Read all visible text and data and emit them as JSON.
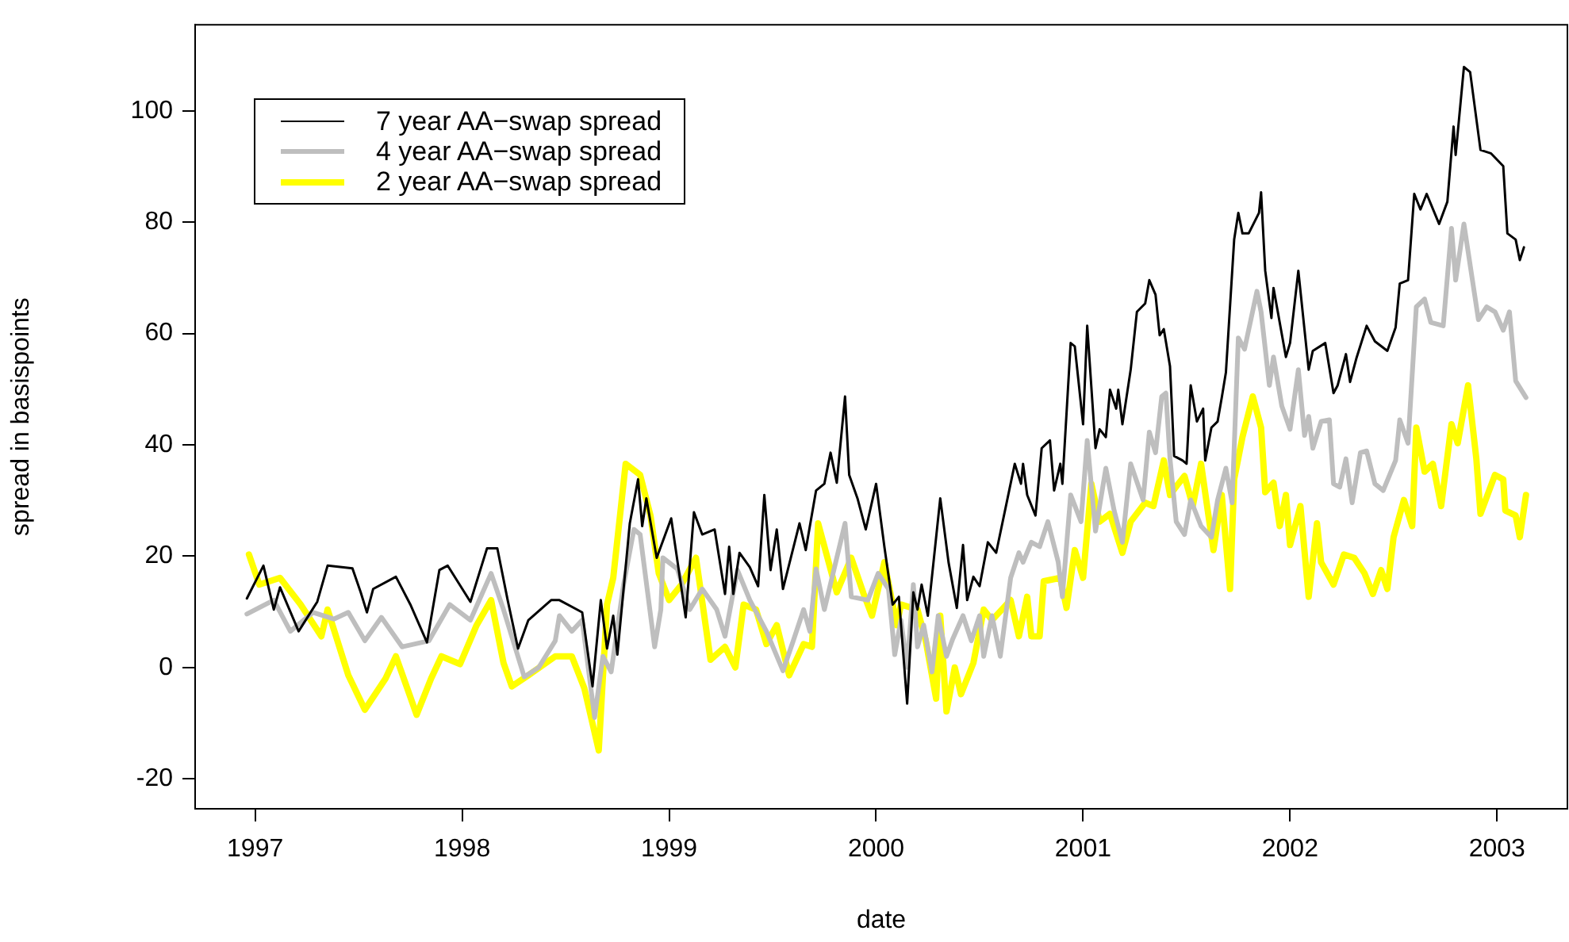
{
  "chart_data": {
    "type": "line",
    "xlabel": "date",
    "ylabel": "spread in basispoints",
    "xlim": [
      1996.71,
      2003.34
    ],
    "ylim": [
      -25.4,
      115.5
    ],
    "xticks": [
      1997,
      1998,
      1999,
      2000,
      2001,
      2002,
      2003
    ],
    "yticks": [
      -20,
      0,
      20,
      40,
      60,
      80,
      100
    ],
    "legend": "top left",
    "marker": "none",
    "line_style": "solid",
    "series": [
      {
        "name": "7 year AA−swap spread",
        "color": "#000000",
        "x": [
          1996.96,
          1997.04,
          1997.09,
          1997.12,
          1997.21,
          1997.3,
          1997.35,
          1997.47,
          1997.51,
          1997.54,
          1997.57,
          1997.68,
          1997.75,
          1997.83,
          1997.89,
          1997.93,
          1998.04,
          1998.12,
          1998.17,
          1998.22,
          1998.27,
          1998.32,
          1998.43,
          1998.47,
          1998.58,
          1998.63,
          1998.67,
          1998.7,
          1998.73,
          1998.75,
          1998.81,
          1998.85,
          1998.87,
          1998.89,
          1998.94,
          1999.01,
          1999.08,
          1999.12,
          1999.16,
          1999.22,
          1999.27,
          1999.29,
          1999.31,
          1999.34,
          1999.39,
          1999.43,
          1999.46,
          1999.49,
          1999.52,
          1999.55,
          1999.63,
          1999.66,
          1999.71,
          1999.75,
          1999.78,
          1999.81,
          1999.85,
          1999.87,
          1999.91,
          1999.95,
          2000.0,
          2000.04,
          2000.08,
          2000.11,
          2000.15,
          2000.18,
          2000.2,
          2000.22,
          2000.25,
          2000.31,
          2000.35,
          2000.39,
          2000.42,
          2000.44,
          2000.47,
          2000.5,
          2000.54,
          2000.58,
          2000.67,
          2000.7,
          2000.71,
          2000.73,
          2000.77,
          2000.8,
          2000.84,
          2000.86,
          2000.89,
          2000.9,
          2000.94,
          2000.96,
          2001.0,
          2001.02,
          2001.06,
          2001.08,
          2001.11,
          2001.13,
          2001.16,
          2001.17,
          2001.19,
          2001.23,
          2001.26,
          2001.3,
          2001.32,
          2001.35,
          2001.37,
          2001.39,
          2001.42,
          2001.44,
          2001.48,
          2001.5,
          2001.52,
          2001.55,
          2001.58,
          2001.59,
          2001.62,
          2001.65,
          2001.67,
          2001.69,
          2001.73,
          2001.75,
          2001.77,
          2001.8,
          2001.85,
          2001.86,
          2001.88,
          2001.91,
          2001.92,
          2001.98,
          2002.0,
          2002.04,
          2002.09,
          2002.11,
          2002.17,
          2002.21,
          2002.23,
          2002.27,
          2002.29,
          2002.32,
          2002.37,
          2002.41,
          2002.47,
          2002.51,
          2002.53,
          2002.57,
          2002.6,
          2002.63,
          2002.66,
          2002.72,
          2002.76,
          2002.79,
          2002.8,
          2002.84,
          2002.87,
          2002.92,
          2002.97,
          2003.03,
          2003.05,
          2003.09,
          2003.11,
          2003.13
        ],
        "values": [
          12.4,
          18.3,
          10.4,
          14.4,
          6.5,
          11.8,
          18.3,
          17.8,
          13.5,
          9.9,
          14.1,
          16.3,
          11.3,
          4.5,
          17.5,
          18.3,
          11.8,
          21.4,
          21.4,
          12.1,
          3.4,
          8.5,
          12.1,
          12.1,
          9.9,
          -3.4,
          12.1,
          3.4,
          9.3,
          2.3,
          25.9,
          33.8,
          25.4,
          30.4,
          19.7,
          26.8,
          9.0,
          27.9,
          23.9,
          24.8,
          13.2,
          21.7,
          13.2,
          20.6,
          18.0,
          14.6,
          31.0,
          17.5,
          24.8,
          14.1,
          25.9,
          21.1,
          31.8,
          33.0,
          38.6,
          33.2,
          48.7,
          34.6,
          30.4,
          24.8,
          33.0,
          21.7,
          11.3,
          12.7,
          -6.5,
          13.5,
          10.4,
          14.9,
          9.3,
          30.4,
          18.9,
          10.7,
          22.0,
          12.1,
          16.3,
          14.6,
          22.5,
          20.6,
          36.6,
          33.0,
          36.6,
          31.0,
          27.3,
          39.4,
          40.8,
          31.8,
          36.6,
          33.0,
          58.3,
          57.7,
          43.7,
          61.4,
          39.4,
          42.8,
          41.4,
          49.9,
          46.5,
          49.9,
          43.7,
          53.5,
          63.9,
          65.4,
          69.6,
          67.0,
          59.7,
          60.8,
          54.1,
          38.0,
          37.2,
          36.6,
          50.7,
          44.2,
          46.5,
          37.2,
          43.1,
          44.2,
          48.5,
          53.0,
          76.9,
          81.7,
          78.0,
          78.0,
          81.7,
          85.4,
          71.3,
          62.8,
          68.2,
          55.8,
          58.3,
          71.3,
          53.5,
          56.9,
          58.3,
          49.3,
          50.7,
          56.3,
          51.3,
          55.5,
          61.4,
          58.6,
          56.9,
          61.1,
          69.0,
          69.6,
          85.1,
          82.3,
          85.1,
          79.7,
          83.7,
          97.2,
          92.1,
          107.9,
          107.0,
          93.0,
          92.4,
          90.1,
          78.0,
          76.9,
          73.2,
          75.5
        ]
      },
      {
        "name": "4 year AA−swap spread",
        "color": "#bebebe",
        "x": [
          1996.96,
          1997.09,
          1997.17,
          1997.28,
          1997.38,
          1997.45,
          1997.53,
          1997.61,
          1997.71,
          1997.84,
          1997.94,
          1998.04,
          1998.14,
          1998.2,
          1998.3,
          1998.37,
          1998.45,
          1998.47,
          1998.53,
          1998.58,
          1998.64,
          1998.68,
          1998.72,
          1998.78,
          1998.83,
          1998.86,
          1998.93,
          1998.96,
          1998.97,
          1999.04,
          1999.1,
          1999.16,
          1999.23,
          1999.27,
          1999.33,
          1999.39,
          1999.47,
          1999.55,
          1999.6,
          1999.65,
          1999.68,
          1999.71,
          1999.75,
          1999.85,
          1999.88,
          1999.96,
          2000.01,
          2000.06,
          2000.09,
          2000.12,
          2000.15,
          2000.18,
          2000.2,
          2000.23,
          2000.27,
          2000.3,
          2000.34,
          2000.37,
          2000.42,
          2000.46,
          2000.5,
          2000.52,
          2000.56,
          2000.6,
          2000.65,
          2000.69,
          2000.71,
          2000.75,
          2000.79,
          2000.83,
          2000.88,
          2000.9,
          2000.94,
          2000.99,
          2001.02,
          2001.06,
          2001.11,
          2001.15,
          2001.19,
          2001.23,
          2001.29,
          2001.32,
          2001.35,
          2001.38,
          2001.4,
          2001.42,
          2001.45,
          2001.49,
          2001.52,
          2001.57,
          2001.62,
          2001.65,
          2001.69,
          2001.72,
          2001.75,
          2001.78,
          2001.84,
          2001.86,
          2001.9,
          2001.92,
          2001.96,
          2002.0,
          2002.04,
          2002.07,
          2002.09,
          2002.11,
          2002.15,
          2002.19,
          2002.21,
          2002.24,
          2002.27,
          2002.3,
          2002.34,
          2002.37,
          2002.41,
          2002.45,
          2002.51,
          2002.53,
          2002.57,
          2002.61,
          2002.65,
          2002.68,
          2002.74,
          2002.78,
          2002.8,
          2002.84,
          2002.91,
          2002.95,
          2002.99,
          2003.03,
          2003.06,
          2003.09,
          2003.14
        ],
        "values": [
          9.6,
          12.1,
          6.5,
          9.9,
          8.7,
          9.9,
          4.8,
          9.0,
          3.7,
          4.8,
          11.3,
          8.5,
          16.9,
          10.4,
          -1.7,
          0,
          4.8,
          9.3,
          6.5,
          8.5,
          -9.0,
          2.0,
          -0.8,
          14.9,
          24.8,
          23.9,
          3.7,
          10.4,
          19.7,
          17.7,
          10.4,
          14.1,
          10.4,
          5.6,
          17.5,
          12.1,
          6.5,
          -0.6,
          4.8,
          10.4,
          6.5,
          17.7,
          10.4,
          25.9,
          12.7,
          12.1,
          16.9,
          14.1,
          2.3,
          8.5,
          0,
          14.9,
          3.7,
          7.6,
          -0.8,
          9.3,
          2.0,
          5.1,
          9.3,
          4.8,
          9.3,
          2.0,
          9.3,
          2.0,
          16.1,
          20.6,
          18.9,
          22.5,
          21.7,
          26.2,
          18.9,
          12.7,
          31.0,
          26.2,
          40.8,
          24.5,
          35.8,
          28.2,
          22.5,
          36.6,
          30.1,
          42.3,
          38.6,
          48.7,
          49.3,
          37.5,
          26.2,
          23.9,
          30.1,
          25.4,
          23.4,
          30.1,
          35.8,
          29.6,
          59.2,
          57.2,
          67.6,
          63.9,
          50.7,
          55.8,
          47.0,
          42.8,
          53.5,
          41.7,
          45.1,
          39.4,
          44.2,
          44.5,
          33.0,
          32.4,
          37.5,
          29.6,
          38.6,
          38.9,
          33.0,
          31.8,
          37.2,
          44.5,
          40.3,
          64.8,
          66.2,
          62.0,
          61.4,
          78.9,
          69.6,
          79.7,
          62.5,
          64.8,
          63.9,
          60.6,
          63.9,
          51.5,
          48.5
        ]
      },
      {
        "name": "2 year AA−swap spread",
        "color": "#ffff00",
        "x": [
          1996.97,
          1997.02,
          1997.12,
          1997.22,
          1997.32,
          1997.35,
          1997.45,
          1997.53,
          1997.63,
          1997.68,
          1997.78,
          1997.85,
          1997.9,
          1997.99,
          1998.07,
          1998.14,
          1998.2,
          1998.24,
          1998.32,
          1998.45,
          1998.53,
          1998.59,
          1998.66,
          1998.7,
          1998.73,
          1998.79,
          1998.86,
          1998.91,
          1998.95,
          1999.0,
          1999.06,
          1999.13,
          1999.2,
          1999.27,
          1999.32,
          1999.36,
          1999.42,
          1999.47,
          1999.52,
          1999.58,
          1999.65,
          1999.69,
          1999.72,
          1999.81,
          1999.88,
          1999.94,
          1999.98,
          2000.04,
          2000.08,
          2000.1,
          2000.12,
          2000.2,
          2000.24,
          2000.29,
          2000.31,
          2000.34,
          2000.38,
          2000.41,
          2000.47,
          2000.52,
          2000.56,
          2000.65,
          2000.69,
          2000.73,
          2000.75,
          2000.79,
          2000.81,
          2000.89,
          2000.92,
          2000.96,
          2001.0,
          2001.04,
          2001.08,
          2001.13,
          2001.19,
          2001.23,
          2001.3,
          2001.34,
          2001.39,
          2001.42,
          2001.46,
          2001.49,
          2001.53,
          2001.57,
          2001.61,
          2001.63,
          2001.67,
          2001.71,
          2001.73,
          2001.77,
          2001.82,
          2001.86,
          2001.88,
          2001.92,
          2001.95,
          2001.98,
          2002.0,
          2002.05,
          2002.09,
          2002.13,
          2002.15,
          2002.21,
          2002.26,
          2002.31,
          2002.36,
          2002.4,
          2002.44,
          2002.47,
          2002.5,
          2002.55,
          2002.59,
          2002.61,
          2002.65,
          2002.69,
          2002.73,
          2002.78,
          2002.81,
          2002.86,
          2002.9,
          2002.92,
          2002.99,
          2003.03,
          2003.04,
          2003.09,
          2003.11,
          2003.14
        ],
        "values": [
          20.3,
          14.9,
          16.1,
          11.3,
          5.6,
          10.4,
          -1.4,
          -7.6,
          -2.0,
          2.0,
          -8.5,
          -2.0,
          2.0,
          0.6,
          7.6,
          12.1,
          0.8,
          -3.4,
          -1.4,
          2.0,
          2.0,
          -3.7,
          -14.9,
          11.3,
          16.1,
          36.6,
          34.6,
          27.3,
          16.9,
          12.1,
          14.9,
          19.7,
          1.4,
          3.7,
          0,
          11.3,
          10.4,
          4.2,
          7.6,
          -1.4,
          4.2,
          3.7,
          25.9,
          13.5,
          19.7,
          13.2,
          9.3,
          18.9,
          11.3,
          7.6,
          11.3,
          10.4,
          4.8,
          -5.6,
          9.3,
          -7.9,
          0,
          -4.8,
          0.8,
          10.4,
          8.5,
          12.1,
          5.6,
          12.7,
          5.6,
          5.6,
          15.5,
          16.1,
          10.7,
          21.1,
          16.1,
          33.0,
          26.2,
          27.6,
          20.6,
          26.2,
          29.6,
          29.0,
          37.2,
          31.0,
          33.0,
          34.4,
          29.0,
          36.6,
          26.2,
          21.1,
          31.0,
          14.1,
          33.8,
          41.4,
          48.7,
          43.1,
          31.5,
          33.2,
          25.4,
          31.0,
          22.0,
          29.0,
          12.7,
          25.9,
          18.9,
          14.9,
          20.3,
          19.7,
          16.9,
          13.2,
          17.5,
          14.1,
          23.4,
          30.1,
          25.4,
          43.1,
          35.2,
          36.6,
          29.0,
          43.7,
          40.3,
          50.7,
          37.5,
          27.6,
          34.6,
          33.8,
          28.2,
          27.3,
          23.4,
          31.0
        ]
      }
    ]
  }
}
